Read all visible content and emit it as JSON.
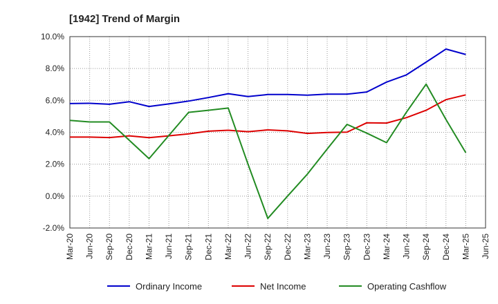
{
  "chart_data": {
    "type": "line",
    "title": "[1942]  Trend of Margin",
    "xlabel": "",
    "ylabel": "",
    "x": [
      "Mar-20",
      "Jun-20",
      "Sep-20",
      "Dec-20",
      "Mar-21",
      "Jun-21",
      "Sep-21",
      "Dec-21",
      "Mar-22",
      "Jun-22",
      "Sep-22",
      "Dec-22",
      "Mar-23",
      "Jun-23",
      "Sep-23",
      "Dec-23",
      "Mar-24",
      "Jun-24",
      "Sep-24",
      "Dec-24",
      "Mar-25",
      "Jun-25"
    ],
    "ylim": [
      -2.0,
      10.0
    ],
    "yticks": [
      -2.0,
      0.0,
      2.0,
      4.0,
      6.0,
      8.0,
      10.0
    ],
    "ytick_labels": [
      "-2.0%",
      "0.0%",
      "2.0%",
      "4.0%",
      "6.0%",
      "8.0%",
      "10.0%"
    ],
    "grid": true,
    "legend_position": "bottom",
    "series": [
      {
        "name": "Ordinary Income",
        "color": "#0000cc",
        "values": [
          5.8,
          5.82,
          5.76,
          5.92,
          5.62,
          5.78,
          5.96,
          6.18,
          6.42,
          6.24,
          6.37,
          6.37,
          6.33,
          6.39,
          6.39,
          6.53,
          7.15,
          7.6,
          8.4,
          9.22,
          8.88,
          null
        ]
      },
      {
        "name": "Net Income",
        "color": "#dd0000",
        "values": [
          3.7,
          3.7,
          3.67,
          3.78,
          3.66,
          3.78,
          3.9,
          4.07,
          4.13,
          4.04,
          4.15,
          4.09,
          3.93,
          3.99,
          4.01,
          4.6,
          4.58,
          4.92,
          5.38,
          6.05,
          6.35,
          null
        ]
      },
      {
        "name": "Operating Cashflow",
        "color": "#228b22",
        "values": [
          4.75,
          4.65,
          4.65,
          3.5,
          2.35,
          3.8,
          5.25,
          5.38,
          5.52,
          2.0,
          -1.4,
          0.0,
          1.38,
          2.95,
          4.5,
          3.95,
          3.35,
          5.25,
          7.02,
          4.8,
          2.72,
          null
        ]
      }
    ]
  }
}
